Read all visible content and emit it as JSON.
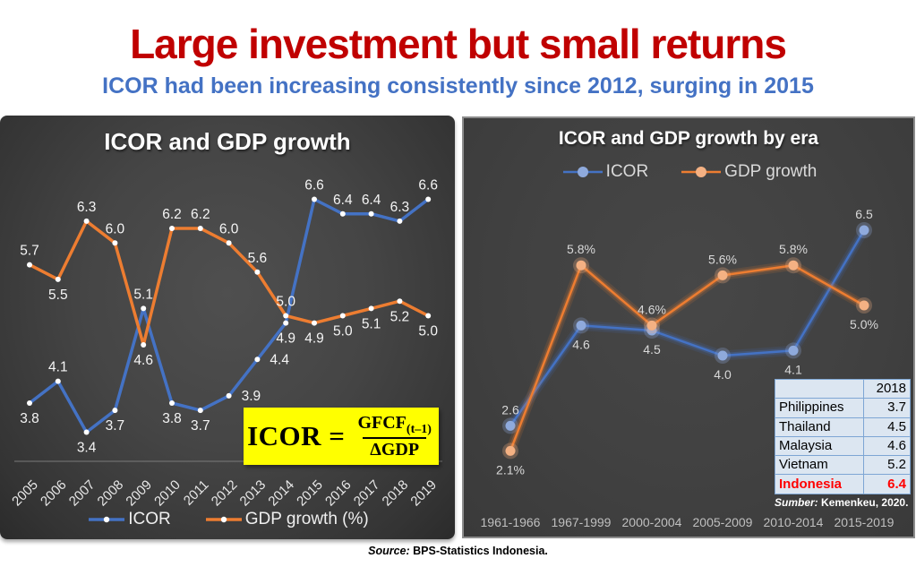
{
  "page": {
    "title": "Large investment but small returns",
    "subtitle": "ICOR had been increasing consistently since 2012, surging in 2015",
    "footer_source_label": "Source:",
    "footer_source_text": "BPS-Statistics Indonesia."
  },
  "colors": {
    "title_red": "#C00000",
    "subtitle_blue": "#4472C4",
    "icor_blue": "#4472C4",
    "gdp_orange": "#ED7D31",
    "marker_white": "#FFFFFF",
    "marker_light_blue": "#8FAADC",
    "marker_light_orange": "#F4B183",
    "formula_bg": "#FFFF00",
    "table_bg": "#DCE6F1",
    "table_border": "#7EA6D4",
    "indonesia_red": "#FF0000"
  },
  "formula": {
    "lhs": "ICOR",
    "equals": "=",
    "numerator_base": "GFCF",
    "numerator_sub": "(t–1)",
    "denominator": "ΔGDP"
  },
  "chart_data": [
    {
      "type": "line",
      "title": "ICOR and GDP growth",
      "categories": [
        "2005",
        "2006",
        "2007",
        "2008",
        "2009",
        "2010",
        "2011",
        "2012",
        "2013",
        "2014",
        "2015",
        "2016",
        "2017",
        "2018",
        "2019"
      ],
      "ylim": [
        3.0,
        7.0
      ],
      "grid": false,
      "legend_position": "bottom",
      "series": [
        {
          "name": "ICOR",
          "color": "#4472C4",
          "marker": "#FFFFFF",
          "values": [
            3.8,
            4.1,
            3.4,
            3.7,
            5.1,
            3.8,
            3.7,
            3.9,
            4.4,
            4.9,
            6.6,
            6.4,
            6.4,
            6.3,
            6.6
          ],
          "labels": [
            "3.8",
            "4.1",
            "3.4",
            "3.7",
            "5.1",
            "3.8",
            "3.7",
            "3.9",
            "4.4",
            "4.9",
            "6.6",
            "6.4",
            "6.4",
            "6.3",
            "6.6"
          ],
          "label_pos": [
            "below",
            "above",
            "below",
            "below",
            "above",
            "below",
            "below",
            "right",
            "right",
            "below",
            "above",
            "above",
            "above",
            "above",
            "above"
          ]
        },
        {
          "name": "GDP growth (%)",
          "color": "#ED7D31",
          "marker": "#FFFFFF",
          "values": [
            5.7,
            5.5,
            6.3,
            6.0,
            4.6,
            6.2,
            6.2,
            6.0,
            5.6,
            5.0,
            4.9,
            5.0,
            5.1,
            5.2,
            5.0
          ],
          "labels": [
            "5.7",
            "5.5",
            "6.3",
            "6.0",
            "4.6",
            "6.2",
            "6.2",
            "6.0",
            "5.6",
            "5.0",
            "4.9",
            "5.0",
            "5.1",
            "5.2",
            "5.0"
          ],
          "label_pos": [
            "above",
            "below",
            "above",
            "above",
            "below",
            "above",
            "above",
            "above",
            "above",
            "above",
            "below",
            "below",
            "below",
            "below",
            "below"
          ]
        }
      ]
    },
    {
      "type": "line",
      "title": "ICOR and GDP growth by era",
      "categories": [
        "1961-1966",
        "1967-1999",
        "2000-2004",
        "2005-2009",
        "2010-2014",
        "2015-2019"
      ],
      "ylim": [
        1.0,
        7.5
      ],
      "grid": false,
      "legend_position": "top",
      "series": [
        {
          "name": "ICOR",
          "color": "#4472C4",
          "marker": "#8FAADC",
          "values": [
            2.6,
            4.6,
            4.5,
            4.0,
            4.1,
            6.5
          ],
          "labels": [
            "2.6",
            "4.6",
            "4.5",
            "4.0",
            "4.1",
            "6.5"
          ],
          "label_pos": [
            "above",
            "below",
            "below",
            "below",
            "below",
            "above"
          ]
        },
        {
          "name": "GDP growth",
          "color": "#ED7D31",
          "marker": "#F4B183",
          "values": [
            2.1,
            5.8,
            4.6,
            5.6,
            5.8,
            5.0
          ],
          "labels": [
            "2.1%",
            "5.8%",
            "4.6%",
            "5.6%",
            "5.8%",
            "5.0%"
          ],
          "label_pos": [
            "below",
            "above",
            "above",
            "above",
            "above",
            "below"
          ]
        }
      ],
      "table": {
        "header_country": "",
        "header_year": "2018",
        "rows": [
          {
            "country": "Philippines",
            "value": "3.7"
          },
          {
            "country": "Thailand",
            "value": "4.5"
          },
          {
            "country": "Malaysia",
            "value": "4.6"
          },
          {
            "country": "Vietnam",
            "value": "5.2"
          },
          {
            "country": "Indonesia",
            "value": "6.4",
            "highlight": true
          }
        ],
        "source_label": "Sumber:",
        "source_text": "Kemenkeu, 2020."
      }
    }
  ]
}
